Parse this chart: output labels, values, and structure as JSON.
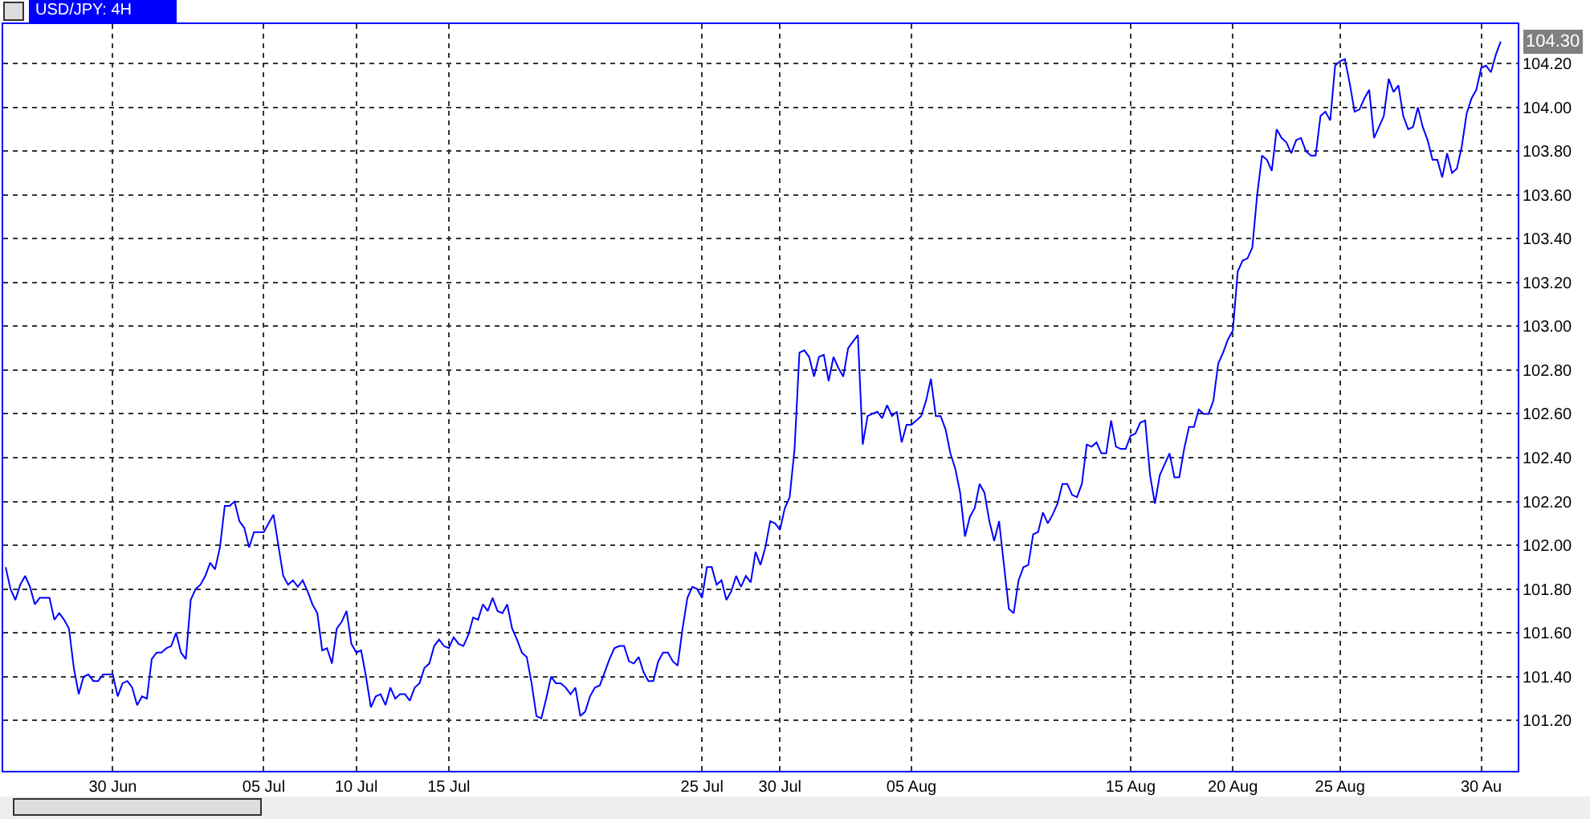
{
  "chart_data": {
    "type": "line",
    "title": "USD/JPY: 4H",
    "categories": [
      null,
      null,
      null,
      null,
      null,
      null,
      null,
      null,
      null,
      null,
      null,
      null,
      null,
      null,
      null,
      null,
      null,
      null,
      null,
      null,
      null,
      null,
      "30 Jun",
      null,
      null,
      null,
      null,
      null,
      null,
      null,
      null,
      null,
      null,
      null,
      null,
      null,
      null,
      null,
      null,
      null,
      null,
      null,
      null,
      null,
      null,
      null,
      null,
      null,
      null,
      null,
      null,
      null,
      null,
      "05 Jul",
      null,
      null,
      null,
      null,
      null,
      null,
      null,
      null,
      null,
      null,
      null,
      null,
      null,
      null,
      null,
      null,
      null,
      null,
      "10 Jul",
      null,
      null,
      null,
      null,
      null,
      null,
      null,
      null,
      null,
      null,
      null,
      null,
      null,
      null,
      null,
      null,
      null,
      null,
      "15 Jul",
      null,
      null,
      null,
      null,
      null,
      null,
      null,
      null,
      null,
      null,
      null,
      null,
      null,
      null,
      null,
      null,
      null,
      null,
      null,
      null,
      null,
      null,
      null,
      null,
      null,
      null,
      null,
      null,
      null,
      null,
      null,
      null,
      null,
      null,
      null,
      null,
      null,
      null,
      null,
      null,
      null,
      null,
      null,
      null,
      null,
      null,
      null,
      null,
      null,
      null,
      null,
      "25 Jul",
      null,
      null,
      null,
      null,
      null,
      null,
      null,
      null,
      null,
      null,
      null,
      null,
      null,
      null,
      null,
      "30 Jul",
      null,
      null,
      null,
      null,
      null,
      null,
      null,
      null,
      null,
      null,
      null,
      null,
      null,
      null,
      null,
      null,
      null,
      null,
      null,
      null,
      null,
      null,
      null,
      null,
      null,
      null,
      "05 Aug",
      null,
      null,
      null,
      null,
      null,
      null,
      null,
      null,
      null,
      null,
      null,
      null,
      null,
      null,
      null,
      null,
      null,
      null,
      null,
      null,
      null,
      null,
      null,
      null,
      null,
      null,
      null,
      null,
      null,
      null,
      null,
      null,
      null,
      null,
      null,
      null,
      null,
      null,
      null,
      null,
      null,
      null,
      null,
      null,
      "15 Aug",
      null,
      null,
      null,
      null,
      null,
      null,
      null,
      null,
      null,
      null,
      null,
      null,
      null,
      null,
      null,
      null,
      null,
      null,
      null,
      null,
      "20 Aug",
      null,
      null,
      null,
      null,
      null,
      null,
      null,
      null,
      null,
      null,
      null,
      null,
      null,
      null,
      null,
      null,
      null,
      null,
      null,
      null,
      null,
      "25 Aug",
      null,
      null,
      null,
      null,
      null,
      null,
      null,
      null,
      null,
      null,
      null,
      null,
      null,
      null,
      null,
      null,
      null,
      null,
      null,
      null,
      null,
      null,
      null,
      null,
      null,
      null,
      null,
      null,
      "30 Au",
      null,
      null,
      null,
      null
    ],
    "series": [
      {
        "color": "#0000ff",
        "values": [
          101.9,
          101.8,
          101.75,
          101.82,
          101.86,
          101.81,
          101.73,
          101.76,
          101.76,
          101.76,
          101.66,
          101.69,
          101.66,
          101.62,
          101.44,
          101.32,
          101.4,
          101.41,
          101.38,
          101.38,
          101.41,
          101.41,
          101.41,
          101.31,
          101.37,
          101.38,
          101.35,
          101.27,
          101.31,
          101.3,
          101.48,
          101.51,
          101.51,
          101.53,
          101.54,
          101.6,
          101.51,
          101.48,
          101.75,
          101.8,
          101.82,
          101.86,
          101.92,
          101.89,
          101.99,
          102.18,
          102.18,
          102.2,
          102.11,
          102.08,
          101.99,
          102.06,
          102.06,
          102.06,
          102.1,
          102.14,
          102.0,
          101.86,
          101.82,
          101.84,
          101.81,
          101.84,
          101.79,
          101.73,
          101.69,
          101.52,
          101.53,
          101.46,
          101.62,
          101.65,
          101.7,
          101.55,
          101.51,
          101.52,
          101.4,
          101.26,
          101.31,
          101.32,
          101.27,
          101.35,
          101.3,
          101.32,
          101.32,
          101.29,
          101.35,
          101.37,
          101.44,
          101.46,
          101.54,
          101.57,
          101.54,
          101.53,
          101.58,
          101.55,
          101.54,
          101.59,
          101.67,
          101.66,
          101.73,
          101.7,
          101.76,
          101.7,
          101.69,
          101.73,
          101.62,
          101.57,
          101.51,
          101.49,
          101.37,
          101.22,
          101.21,
          101.3,
          101.4,
          101.37,
          101.37,
          101.35,
          101.32,
          101.35,
          101.22,
          101.24,
          101.31,
          101.35,
          101.36,
          101.42,
          101.48,
          101.53,
          101.54,
          101.54,
          101.47,
          101.46,
          101.49,
          101.42,
          101.38,
          101.38,
          101.47,
          101.51,
          101.51,
          101.47,
          101.45,
          101.62,
          101.76,
          101.81,
          101.8,
          101.76,
          101.9,
          101.9,
          101.82,
          101.84,
          101.75,
          101.79,
          101.86,
          101.81,
          101.86,
          101.83,
          101.97,
          101.91,
          101.99,
          102.11,
          102.1,
          102.07,
          102.17,
          102.22,
          102.44,
          102.88,
          102.89,
          102.86,
          102.77,
          102.86,
          102.87,
          102.75,
          102.86,
          102.81,
          102.77,
          102.9,
          102.93,
          102.96,
          102.46,
          102.59,
          102.6,
          102.61,
          102.58,
          102.64,
          102.59,
          102.61,
          102.47,
          102.55,
          102.55,
          102.57,
          102.59,
          102.66,
          102.76,
          102.59,
          102.59,
          102.53,
          102.42,
          102.35,
          102.24,
          102.04,
          102.13,
          102.17,
          102.28,
          102.24,
          102.11,
          102.02,
          102.11,
          101.91,
          101.71,
          101.69,
          101.84,
          101.9,
          101.91,
          102.05,
          102.06,
          102.15,
          102.1,
          102.14,
          102.19,
          102.28,
          102.28,
          102.23,
          102.22,
          102.28,
          102.46,
          102.45,
          102.47,
          102.42,
          102.42,
          102.57,
          102.45,
          102.44,
          102.44,
          102.5,
          102.51,
          102.56,
          102.57,
          102.32,
          102.19,
          102.32,
          102.37,
          102.42,
          102.31,
          102.31,
          102.44,
          102.54,
          102.54,
          102.62,
          102.6,
          102.6,
          102.66,
          102.83,
          102.88,
          102.94,
          102.98,
          103.25,
          103.3,
          103.31,
          103.36,
          103.6,
          103.78,
          103.76,
          103.71,
          103.9,
          103.86,
          103.84,
          103.79,
          103.85,
          103.86,
          103.8,
          103.78,
          103.78,
          103.96,
          103.98,
          103.94,
          104.19,
          104.21,
          104.22,
          104.11,
          103.98,
          103.99,
          104.04,
          104.08,
          103.86,
          103.91,
          103.96,
          104.13,
          104.07,
          104.1,
          103.96,
          103.9,
          103.91,
          104.0,
          103.91,
          103.85,
          103.76,
          103.76,
          103.68,
          103.79,
          103.7,
          103.72,
          103.82,
          103.97,
          104.04,
          104.08,
          104.18,
          104.19,
          104.16,
          104.24,
          104.3
        ]
      }
    ],
    "ylim": [
      100.97,
      104.38
    ],
    "yticks": [
      {
        "value": 101.2,
        "label": "101.20"
      },
      {
        "value": 101.4,
        "label": "101.40"
      },
      {
        "value": 101.6,
        "label": "101.60"
      },
      {
        "value": 101.8,
        "label": "101.80"
      },
      {
        "value": 102.0,
        "label": "102.00"
      },
      {
        "value": 102.2,
        "label": "102.20"
      },
      {
        "value": 102.4,
        "label": "102.40"
      },
      {
        "value": 102.6,
        "label": "102.60"
      },
      {
        "value": 102.8,
        "label": "102.80"
      },
      {
        "value": 103.0,
        "label": "103.00"
      },
      {
        "value": 103.2,
        "label": "103.20"
      },
      {
        "value": 103.4,
        "label": "103.40"
      },
      {
        "value": 103.6,
        "label": "103.60"
      },
      {
        "value": 103.8,
        "label": "103.80"
      },
      {
        "value": 104.0,
        "label": "104.00"
      },
      {
        "value": 104.2,
        "label": "104.20"
      }
    ],
    "annotations": [
      "104.30"
    ],
    "grid": true,
    "marker": "none",
    "line_style": "solid"
  }
}
